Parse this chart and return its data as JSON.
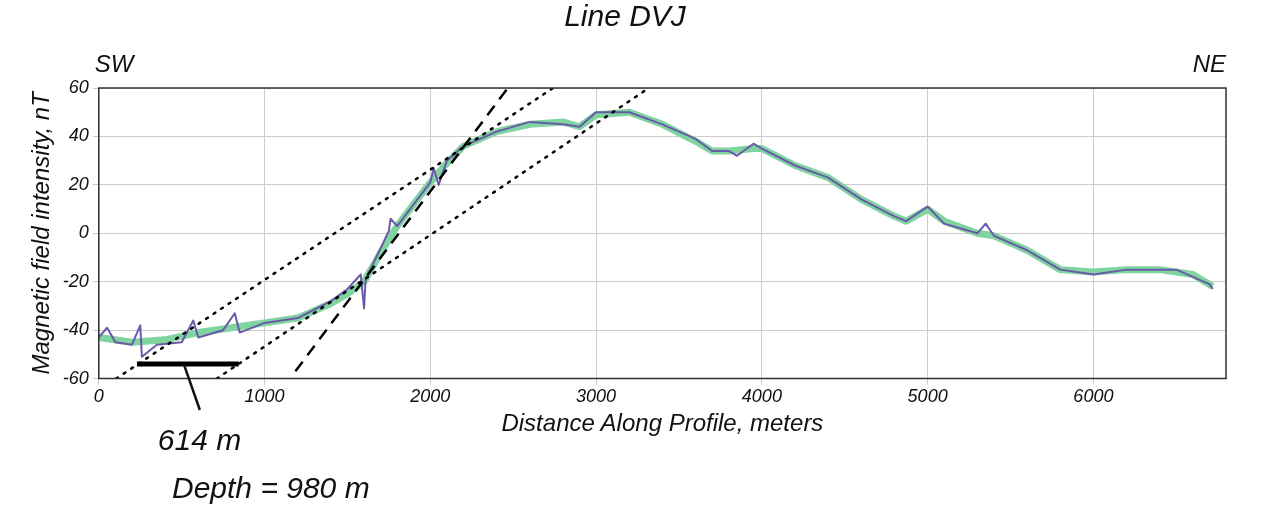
{
  "chart_data": {
    "type": "line",
    "title": "Line DVJ",
    "xlabel": "Distance Along Profile, meters",
    "ylabel": "Magnetic field intensity, nT",
    "xlim": [
      0,
      6800
    ],
    "xticks": [
      0,
      1000,
      2000,
      3000,
      4000,
      5000,
      6000
    ],
    "ylim": [
      -60,
      60
    ],
    "yticks": [
      -60,
      -40,
      -20,
      0,
      20,
      40,
      60
    ],
    "grid": true,
    "legend": false,
    "marker": "none",
    "annotations": [
      "SW",
      "NE",
      {
        "text": "614 m",
        "x": 537,
        "y": -54
      },
      "Depth = 980 m"
    ],
    "series": [
      {
        "color": "#7fd4a0",
        "x": [
          0,
          200,
          400,
          600,
          800,
          1000,
          1200,
          1400,
          1500,
          1600,
          1700,
          1800,
          1900,
          2000,
          2100,
          2200,
          2400,
          2600,
          2800,
          2900,
          3000,
          3200,
          3400,
          3600,
          3700,
          3800,
          3950,
          4000,
          4200,
          4400,
          4600,
          4800,
          4870,
          5000,
          5100,
          5300,
          5400,
          5600,
          5800,
          6000,
          6200,
          6400,
          6600,
          6720
        ],
        "values": [
          -43,
          -45,
          -44,
          -41,
          -39,
          -37,
          -35,
          -29,
          -25,
          -20,
          -8,
          3,
          12,
          21,
          29,
          36,
          42,
          45,
          46,
          44,
          49,
          50,
          45,
          38,
          34,
          34,
          35,
          35,
          28,
          23,
          14,
          7,
          5,
          10,
          5,
          0,
          -1,
          -7,
          -15,
          -16,
          -15,
          -15,
          -17,
          -22
        ]
      },
      {
        "color": "#6a5aaa",
        "x": [
          0,
          50,
          100,
          200,
          250,
          260,
          350,
          500,
          570,
          600,
          750,
          820,
          850,
          1000,
          1200,
          1400,
          1500,
          1580,
          1600,
          1610,
          1750,
          1760,
          1800,
          1900,
          2000,
          2020,
          2050,
          2100,
          2200,
          2400,
          2600,
          2800,
          2900,
          3000,
          3200,
          3400,
          3600,
          3700,
          3800,
          3850,
          3950,
          4000,
          4200,
          4400,
          4600,
          4800,
          4870,
          5000,
          5100,
          5300,
          5350,
          5400,
          5600,
          5800,
          6000,
          6200,
          6400,
          6500,
          6600,
          6700,
          6720
        ],
        "values": [
          -43,
          -39,
          -45,
          -46,
          -38,
          -51,
          -46,
          -45,
          -36,
          -43,
          -40,
          -33,
          -41,
          -37,
          -35,
          -28,
          -23,
          -17,
          -31,
          -19,
          1,
          6,
          3,
          12,
          21,
          27,
          20,
          30,
          36,
          42,
          46,
          45,
          44,
          50,
          50,
          45,
          39,
          34,
          34,
          32,
          37,
          35,
          28,
          23,
          14,
          7,
          5,
          11,
          4,
          0,
          4,
          -1,
          -7,
          -15,
          -17,
          -15,
          -15,
          -15,
          -18,
          -21,
          -23
        ]
      },
      {
        "type": "line",
        "color": "#000000",
        "line_style": "dotted",
        "x": [
          105,
          2740
        ],
        "values": [
          -60,
          60
        ]
      },
      {
        "type": "line",
        "color": "#000000",
        "line_style": "dotted",
        "x": [
          712,
          3318
        ],
        "values": [
          -60,
          60
        ]
      },
      {
        "type": "line",
        "color": "#000000",
        "line_style": "dashed",
        "x": [
          1186,
          2467
        ],
        "values": [
          -57,
          60
        ]
      },
      {
        "type": "line",
        "color": "#000000",
        "line_style": "solid",
        "x": [
          230,
          844
        ],
        "values": [
          -54,
          -54
        ]
      }
    ]
  }
}
